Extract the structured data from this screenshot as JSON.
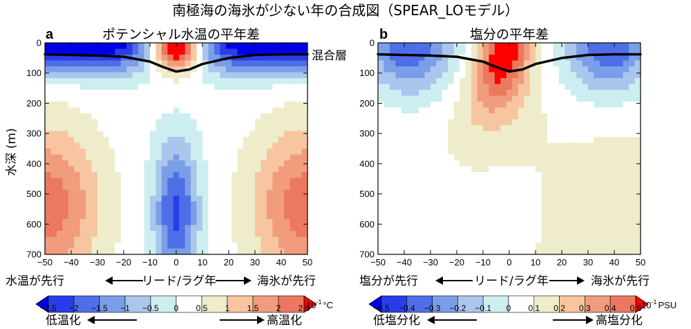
{
  "title": "南極海の海氷が少ない年の合成図（SPEAR_LOモデル）",
  "annotation_mixed_layer": "混合層",
  "y_axis_label": "水深 (m)",
  "lead_lag": {
    "left": "水温が先行",
    "center": "リード/ラグ年",
    "right_a": "海氷が先行",
    "left_b": "塩分が先行",
    "right_b": "海氷が先行"
  },
  "colorbar_a": {
    "ticks": [
      "−2.5",
      "−2",
      "−1.5",
      "−1",
      "−0.5",
      "0",
      "0.5",
      "1",
      "1.5",
      "2",
      "2.5"
    ],
    "unit_base": "10",
    "unit_exp": "-1",
    "unit": "°C",
    "low": "低温化",
    "high": "高温化"
  },
  "colorbar_b": {
    "ticks": [
      "−0.5",
      "−0.4",
      "−0.3",
      "−0.2",
      "−0.1",
      "0",
      "0.1",
      "0.2",
      "0.3",
      "0.4",
      "0.5"
    ],
    "unit_base": "10",
    "unit_exp": "-1",
    "unit": "PSU",
    "low": "低塩分化",
    "high": "高塩分化"
  },
  "colors": {
    "levels": [
      "#0000e6",
      "#2a3de8",
      "#4f6fe8",
      "#7b9ee8",
      "#aac6ec",
      "#cdeef0",
      "#ffffff",
      "#eeeccb",
      "#f7c6a0",
      "#f19c7c",
      "#ec7860",
      "#ea5048",
      "#e61e1e",
      "#ff0000"
    ],
    "mixed_layer_line": "#000000"
  },
  "chart_data": [
    {
      "type": "heatmap",
      "panel": "a",
      "title": "ポテンシャル水温の平年差",
      "x": [
        -50,
        -40,
        -30,
        -20,
        -10,
        0,
        10,
        20,
        30,
        40,
        50
      ],
      "x_tick_labels": [
        "−50",
        "−40",
        "−30",
        "−20",
        "−10",
        "0",
        "10",
        "20",
        "30",
        "40",
        "50"
      ],
      "xlim": [
        -50,
        50
      ],
      "y_ticks": [
        0,
        100,
        200,
        300,
        400,
        500,
        600,
        700
      ],
      "ylim": [
        700,
        0
      ],
      "levels": [
        -2.5,
        -2,
        -1.5,
        -1,
        -0.5,
        0,
        0.5,
        1,
        1.5,
        2,
        2.5
      ],
      "unit": "10^-1 °C",
      "mixed_layer_depth": {
        "x": [
          -50,
          -40,
          -30,
          -20,
          -10,
          -5,
          0,
          5,
          10,
          20,
          30,
          40,
          50
        ],
        "depth": [
          38,
          40,
          42,
          46,
          62,
          80,
          95,
          88,
          70,
          50,
          40,
          38,
          38
        ]
      }
    },
    {
      "type": "heatmap",
      "panel": "b",
      "title": "塩分の平年差",
      "x": [
        -50,
        -40,
        -30,
        -20,
        -10,
        0,
        10,
        20,
        30,
        40,
        50
      ],
      "x_tick_labels": [
        "−50",
        "−40",
        "−30",
        "−20",
        "−10",
        "0",
        "10",
        "20",
        "30",
        "40",
        "50"
      ],
      "xlim": [
        -50,
        50
      ],
      "y_ticks": [
        0,
        100,
        200,
        300,
        400,
        500,
        600,
        700
      ],
      "ylim": [
        700,
        0
      ],
      "levels": [
        -0.5,
        -0.4,
        -0.3,
        -0.2,
        -0.1,
        0,
        0.1,
        0.2,
        0.3,
        0.4,
        0.5
      ],
      "unit": "10^-1 PSU",
      "mixed_layer_depth": {
        "x": [
          -50,
          -40,
          -30,
          -20,
          -10,
          -5,
          0,
          5,
          10,
          20,
          30,
          40,
          50
        ],
        "depth": [
          38,
          40,
          42,
          46,
          62,
          80,
          95,
          88,
          70,
          50,
          40,
          38,
          38
        ]
      }
    }
  ]
}
